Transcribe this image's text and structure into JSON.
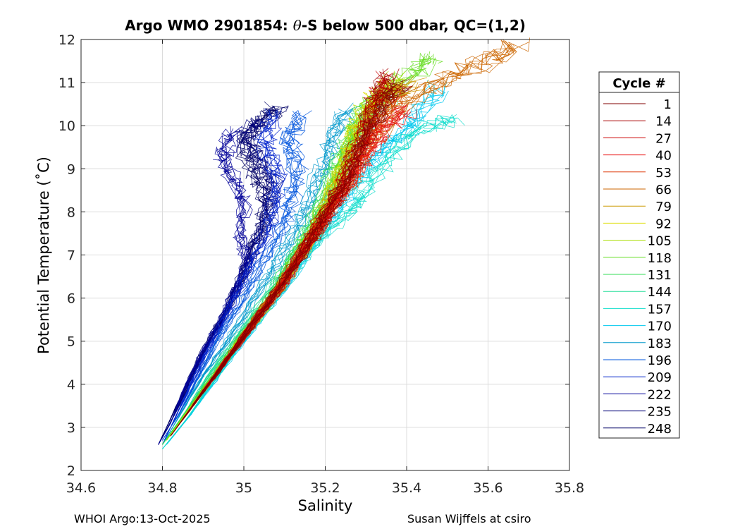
{
  "chart_data": {
    "type": "line",
    "title_prefix": "Argo WMO 2901854: ",
    "title_symbol": "θ",
    "title_suffix": "-S below 500 dbar,  QC=(1,2)",
    "xlabel": "Salinity",
    "ylabel": "Potential Temperature (˚C)",
    "xlim": [
      34.6,
      35.8
    ],
    "ylim": [
      2,
      12
    ],
    "xticks": [
      "34.6",
      "34.8",
      "35",
      "35.2",
      "35.4",
      "35.6",
      "35.8"
    ],
    "yticks": [
      "2",
      "3",
      "4",
      "5",
      "6",
      "7",
      "8",
      "9",
      "10",
      "11",
      "12"
    ],
    "grid": true,
    "legend": {
      "title": "Cycle #",
      "placement": "right",
      "entries": [
        {
          "label": "1",
          "color": "#800000"
        },
        {
          "label": "14",
          "color": "#a80000"
        },
        {
          "label": "27",
          "color": "#cc0000"
        },
        {
          "label": "40",
          "color": "#e81010"
        },
        {
          "label": "53",
          "color": "#dd3300"
        },
        {
          "label": "66",
          "color": "#cc6600"
        },
        {
          "label": "79",
          "color": "#cc9900"
        },
        {
          "label": "92",
          "color": "#dddd00"
        },
        {
          "label": "105",
          "color": "#aadd00"
        },
        {
          "label": "118",
          "color": "#66dd22"
        },
        {
          "label": "131",
          "color": "#33dd55"
        },
        {
          "label": "144",
          "color": "#22dd99"
        },
        {
          "label": "157",
          "color": "#11ddcc"
        },
        {
          "label": "170",
          "color": "#00c8ee"
        },
        {
          "label": "183",
          "color": "#0099cc"
        },
        {
          "label": "196",
          "color": "#0055dd"
        },
        {
          "label": "209",
          "color": "#0022cc"
        },
        {
          "label": "222",
          "color": "#000099"
        },
        {
          "label": "235",
          "color": "#000077"
        },
        {
          "label": "248",
          "color": "#000066"
        }
      ]
    },
    "series": [
      {
        "color": "#000066",
        "points": [
          [
            34.79,
            2.6
          ],
          [
            34.82,
            3.2
          ],
          [
            34.86,
            4.0
          ],
          [
            34.9,
            4.8
          ],
          [
            34.95,
            5.6
          ],
          [
            34.99,
            6.4
          ],
          [
            35.02,
            7.1
          ],
          [
            35.05,
            7.8
          ],
          [
            35.05,
            8.5
          ],
          [
            35.02,
            9.0
          ],
          [
            35.0,
            9.6
          ],
          [
            35.05,
            10.2
          ],
          [
            35.08,
            10.4
          ]
        ]
      },
      {
        "color": "#000077",
        "points": [
          [
            34.79,
            2.6
          ],
          [
            34.83,
            3.3
          ],
          [
            34.87,
            4.1
          ],
          [
            34.91,
            4.9
          ],
          [
            34.96,
            5.8
          ],
          [
            35.0,
            6.6
          ],
          [
            35.03,
            7.3
          ],
          [
            35.06,
            8.0
          ],
          [
            35.07,
            8.7
          ],
          [
            35.04,
            9.2
          ],
          [
            35.0,
            9.8
          ],
          [
            35.04,
            10.1
          ]
        ]
      },
      {
        "color": "#000099",
        "points": [
          [
            34.79,
            2.6
          ],
          [
            34.82,
            3.1
          ],
          [
            34.85,
            3.8
          ],
          [
            34.89,
            4.6
          ],
          [
            34.94,
            5.4
          ],
          [
            34.98,
            6.2
          ],
          [
            35.01,
            6.9
          ],
          [
            34.99,
            7.4
          ],
          [
            35.0,
            8.2
          ],
          [
            34.97,
            8.8
          ],
          [
            34.95,
            9.3
          ],
          [
            34.97,
            9.9
          ]
        ]
      },
      {
        "color": "#0022cc",
        "points": [
          [
            34.8,
            2.6
          ],
          [
            34.84,
            3.4
          ],
          [
            34.88,
            4.2
          ],
          [
            34.93,
            5.1
          ],
          [
            34.98,
            6.0
          ],
          [
            35.02,
            6.8
          ],
          [
            35.06,
            7.6
          ],
          [
            35.08,
            8.3
          ],
          [
            35.08,
            9.0
          ],
          [
            35.05,
            9.6
          ],
          [
            35.07,
            10.3
          ]
        ]
      },
      {
        "color": "#0055dd",
        "points": [
          [
            34.8,
            2.7
          ],
          [
            34.84,
            3.3
          ],
          [
            34.89,
            4.2
          ],
          [
            34.94,
            5.1
          ],
          [
            35.0,
            6.0
          ],
          [
            35.05,
            6.9
          ],
          [
            35.1,
            7.7
          ],
          [
            35.12,
            8.4
          ],
          [
            35.13,
            9.1
          ],
          [
            35.11,
            9.7
          ],
          [
            35.14,
            10.3
          ]
        ]
      },
      {
        "color": "#0099cc",
        "points": [
          [
            34.8,
            2.6
          ],
          [
            34.85,
            3.4
          ],
          [
            34.9,
            4.2
          ],
          [
            34.96,
            5.0
          ],
          [
            35.02,
            5.9
          ],
          [
            35.08,
            6.8
          ],
          [
            35.13,
            7.6
          ],
          [
            35.17,
            8.4
          ],
          [
            35.2,
            9.1
          ],
          [
            35.22,
            9.8
          ],
          [
            35.25,
            10.4
          ]
        ]
      },
      {
        "color": "#00c8ee",
        "points": [
          [
            34.81,
            2.6
          ],
          [
            34.87,
            3.3
          ],
          [
            34.93,
            4.1
          ],
          [
            35.0,
            5.0
          ],
          [
            35.07,
            5.9
          ],
          [
            35.14,
            6.8
          ],
          [
            35.2,
            7.6
          ],
          [
            35.25,
            8.3
          ],
          [
            35.3,
            9.0
          ],
          [
            35.36,
            9.6
          ],
          [
            35.42,
            10.1
          ],
          [
            35.48,
            10.9
          ]
        ]
      },
      {
        "color": "#11ddcc",
        "points": [
          [
            34.8,
            2.5
          ],
          [
            34.86,
            3.2
          ],
          [
            34.92,
            4.0
          ],
          [
            34.99,
            4.9
          ],
          [
            35.06,
            5.8
          ],
          [
            35.13,
            6.7
          ],
          [
            35.19,
            7.4
          ],
          [
            35.26,
            8.0
          ],
          [
            35.3,
            8.5
          ],
          [
            35.36,
            9.3
          ],
          [
            35.43,
            9.9
          ],
          [
            35.52,
            10.15
          ]
        ]
      },
      {
        "color": "#22dd99",
        "points": [
          [
            34.8,
            2.6
          ],
          [
            34.86,
            3.4
          ],
          [
            34.92,
            4.3
          ],
          [
            34.99,
            5.2
          ],
          [
            35.06,
            6.1
          ],
          [
            35.12,
            7.0
          ],
          [
            35.18,
            7.8
          ],
          [
            35.23,
            8.6
          ],
          [
            35.27,
            9.3
          ],
          [
            35.3,
            10.0
          ],
          [
            35.35,
            10.7
          ]
        ]
      },
      {
        "color": "#33dd55",
        "points": [
          [
            34.8,
            2.6
          ],
          [
            34.86,
            3.4
          ],
          [
            34.93,
            4.3
          ],
          [
            35.0,
            5.2
          ],
          [
            35.07,
            6.1
          ],
          [
            35.12,
            7.0
          ],
          [
            35.17,
            7.8
          ],
          [
            35.21,
            8.7
          ],
          [
            35.25,
            9.5
          ],
          [
            35.29,
            10.3
          ],
          [
            35.36,
            11.0
          ]
        ]
      },
      {
        "color": "#66dd22",
        "points": [
          [
            34.81,
            2.7
          ],
          [
            34.87,
            3.5
          ],
          [
            34.94,
            4.4
          ],
          [
            35.01,
            5.3
          ],
          [
            35.08,
            6.2
          ],
          [
            35.14,
            7.1
          ],
          [
            35.19,
            8.0
          ],
          [
            35.23,
            8.9
          ],
          [
            35.27,
            9.7
          ],
          [
            35.32,
            10.5
          ],
          [
            35.41,
            11.2
          ],
          [
            35.47,
            11.55
          ]
        ]
      },
      {
        "color": "#aadd00",
        "points": [
          [
            34.81,
            2.7
          ],
          [
            34.88,
            3.6
          ],
          [
            34.95,
            4.5
          ],
          [
            35.02,
            5.4
          ],
          [
            35.09,
            6.3
          ],
          [
            35.15,
            7.2
          ],
          [
            35.2,
            8.1
          ],
          [
            35.24,
            9.0
          ],
          [
            35.27,
            9.8
          ],
          [
            35.31,
            10.5
          ],
          [
            35.38,
            11.1
          ]
        ]
      },
      {
        "color": "#dddd00",
        "points": [
          [
            34.82,
            2.8
          ],
          [
            34.89,
            3.7
          ],
          [
            34.96,
            4.6
          ],
          [
            35.03,
            5.5
          ],
          [
            35.1,
            6.4
          ],
          [
            35.16,
            7.3
          ],
          [
            35.21,
            8.2
          ],
          [
            35.25,
            9.1
          ],
          [
            35.28,
            9.9
          ],
          [
            35.32,
            10.6
          ],
          [
            35.37,
            11.0
          ]
        ]
      },
      {
        "color": "#cc9900",
        "points": [
          [
            34.82,
            2.8
          ],
          [
            34.89,
            3.7
          ],
          [
            34.96,
            4.6
          ],
          [
            35.03,
            5.5
          ],
          [
            35.1,
            6.4
          ],
          [
            35.16,
            7.3
          ],
          [
            35.21,
            8.2
          ],
          [
            35.26,
            9.1
          ],
          [
            35.3,
            9.9
          ],
          [
            35.34,
            10.6
          ],
          [
            35.42,
            11.0
          ]
        ]
      },
      {
        "color": "#cc6600",
        "points": [
          [
            34.82,
            2.8
          ],
          [
            34.89,
            3.7
          ],
          [
            34.96,
            4.6
          ],
          [
            35.03,
            5.5
          ],
          [
            35.1,
            6.4
          ],
          [
            35.16,
            7.3
          ],
          [
            35.22,
            8.2
          ],
          [
            35.28,
            9.1
          ],
          [
            35.33,
            9.9
          ],
          [
            35.4,
            10.6
          ],
          [
            35.5,
            11.1
          ],
          [
            35.6,
            11.5
          ],
          [
            35.67,
            11.9
          ]
        ]
      },
      {
        "color": "#dd3300",
        "points": [
          [
            34.82,
            2.8
          ],
          [
            34.89,
            3.7
          ],
          [
            34.96,
            4.6
          ],
          [
            35.03,
            5.5
          ],
          [
            35.1,
            6.4
          ],
          [
            35.16,
            7.3
          ],
          [
            35.22,
            8.1
          ],
          [
            35.27,
            8.8
          ],
          [
            35.3,
            9.5
          ],
          [
            35.34,
            10.2
          ],
          [
            35.38,
            10.8
          ]
        ]
      },
      {
        "color": "#e81010",
        "points": [
          [
            34.82,
            2.8
          ],
          [
            34.89,
            3.7
          ],
          [
            34.96,
            4.6
          ],
          [
            35.03,
            5.5
          ],
          [
            35.1,
            6.4
          ],
          [
            35.16,
            7.3
          ],
          [
            35.21,
            8.0
          ],
          [
            35.26,
            8.7
          ],
          [
            35.3,
            9.3
          ],
          [
            35.34,
            9.9
          ],
          [
            35.4,
            10.4
          ]
        ]
      },
      {
        "color": "#cc0000",
        "points": [
          [
            34.82,
            2.8
          ],
          [
            34.89,
            3.7
          ],
          [
            34.96,
            4.6
          ],
          [
            35.03,
            5.5
          ],
          [
            35.1,
            6.4
          ],
          [
            35.16,
            7.3
          ],
          [
            35.21,
            8.0
          ],
          [
            35.25,
            8.8
          ],
          [
            35.29,
            9.6
          ],
          [
            35.32,
            10.4
          ],
          [
            35.36,
            11.1
          ]
        ]
      },
      {
        "color": "#a80000",
        "points": [
          [
            34.82,
            2.8
          ],
          [
            34.89,
            3.7
          ],
          [
            34.96,
            4.6
          ],
          [
            35.03,
            5.5
          ],
          [
            35.1,
            6.4
          ],
          [
            35.16,
            7.3
          ],
          [
            35.21,
            8.1
          ],
          [
            35.25,
            8.9
          ],
          [
            35.29,
            9.7
          ],
          [
            35.32,
            10.5
          ],
          [
            35.35,
            11.2
          ]
        ]
      },
      {
        "color": "#800000",
        "points": [
          [
            34.82,
            2.8
          ],
          [
            34.89,
            3.7
          ],
          [
            34.96,
            4.6
          ],
          [
            35.03,
            5.5
          ],
          [
            35.1,
            6.4
          ],
          [
            35.16,
            7.3
          ],
          [
            35.21,
            8.1
          ],
          [
            35.26,
            8.9
          ],
          [
            35.3,
            9.7
          ],
          [
            35.34,
            10.5
          ],
          [
            35.39,
            11.0
          ]
        ]
      }
    ]
  },
  "footer": {
    "left": "WHOI Argo:13-Oct-2025",
    "right": "Susan Wijffels at csiro"
  }
}
